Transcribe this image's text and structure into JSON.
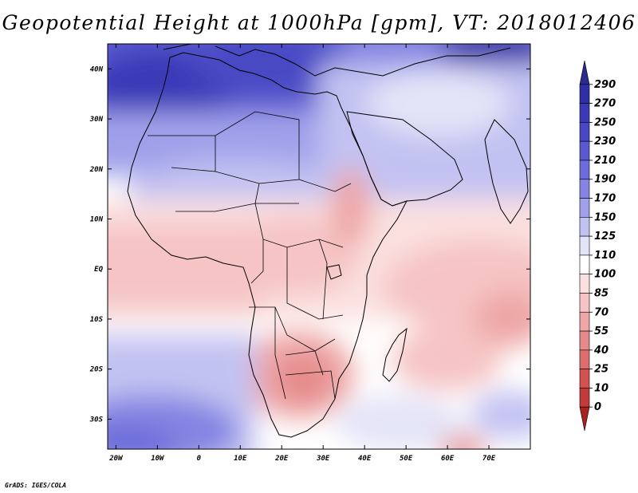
{
  "title": "Geopotential Height at 1000hPa [gpm], VT: 2018012406",
  "credit": "GrADS: IGES/COLA",
  "map": {
    "variable": "Geopotential Height",
    "level": "1000hPa",
    "units": "gpm",
    "valid_time": "2018012406",
    "lon_range": [
      -22,
      80
    ],
    "lat_range": [
      -36,
      45
    ],
    "lat_ticks": [
      {
        "value": 40,
        "label": "40N"
      },
      {
        "value": 30,
        "label": "30N"
      },
      {
        "value": 20,
        "label": "20N"
      },
      {
        "value": 10,
        "label": "10N"
      },
      {
        "value": 0,
        "label": "EQ"
      },
      {
        "value": -10,
        "label": "10S"
      },
      {
        "value": -20,
        "label": "20S"
      },
      {
        "value": -30,
        "label": "30S"
      }
    ],
    "lon_ticks": [
      {
        "value": -20,
        "label": "20W"
      },
      {
        "value": -10,
        "label": "10W"
      },
      {
        "value": 0,
        "label": "0"
      },
      {
        "value": 10,
        "label": "10E"
      },
      {
        "value": 20,
        "label": "20E"
      },
      {
        "value": 30,
        "label": "30E"
      },
      {
        "value": 40,
        "label": "40E"
      },
      {
        "value": 50,
        "label": "50E"
      },
      {
        "value": 60,
        "label": "60E"
      },
      {
        "value": 70,
        "label": "70E"
      }
    ]
  },
  "legend": {
    "labels": [
      "290",
      "270",
      "250",
      "230",
      "210",
      "190",
      "170",
      "150",
      "125",
      "110",
      "100",
      "85",
      "70",
      "55",
      "40",
      "25",
      "10",
      "0"
    ],
    "colors": [
      "#2a2a8e",
      "#2f2fa6",
      "#3a3ab8",
      "#4848c4",
      "#5a5ad0",
      "#6c6cda",
      "#8484e2",
      "#a0a0ea",
      "#c2c2f2",
      "#e4e4f8",
      "#ffffff",
      "#fbe0e0",
      "#f6c4c4",
      "#eea6a6",
      "#e58a8a",
      "#dc6e6e",
      "#d25252",
      "#c23a3a",
      "#a82222"
    ]
  }
}
